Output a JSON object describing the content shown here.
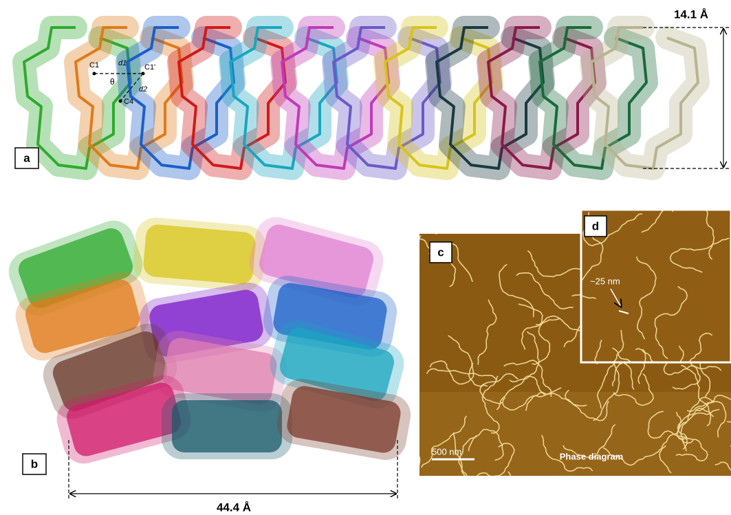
{
  "panels": {
    "a": {
      "label": "a",
      "dimension": "14.1 Å",
      "atoms": [
        "C1",
        "C1'",
        "C4"
      ],
      "distances": [
        "d1",
        "d2"
      ],
      "angle": "θ"
    },
    "b": {
      "label": "b",
      "dimension": "44.4 Å"
    },
    "c": {
      "label": "c",
      "scale_bar": "500 nm",
      "caption": "Phase diagram"
    },
    "d": {
      "label": "d",
      "measurement": "~25 nm"
    }
  }
}
